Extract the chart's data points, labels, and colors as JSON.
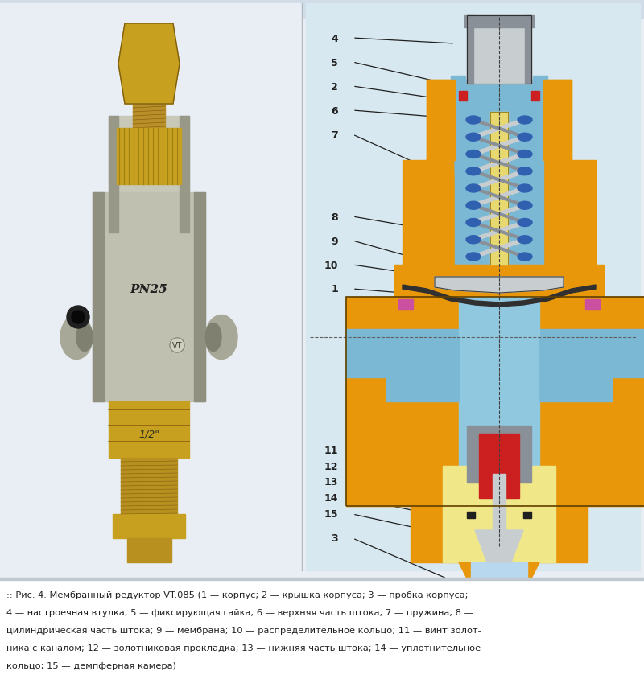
{
  "bg_color": "#dde8f0",
  "caption_line1": ":: Рис. 4. Мембранный редуктор VT.085 (1 — корпус; 2 — крышка корпуса; 3 — пробка корпуса;",
  "caption_line2": "4 — настроечная втулка; 5 — фиксирующая гайка; 6 — верхняя часть штока; 7 — пружина; 8 —",
  "caption_line3": "цилиндрическая часть штока; 9 — мембрана; 10 — распределительное кольцо; 11 — винт золот-",
  "caption_line4": "ника с каналом; 12 — золотниковая прокладка; 13 — нижняя часть штока; 14 — уплотнительное",
  "caption_line5": "кольцо; 15 — демпферная камера)",
  "image_path": null
}
